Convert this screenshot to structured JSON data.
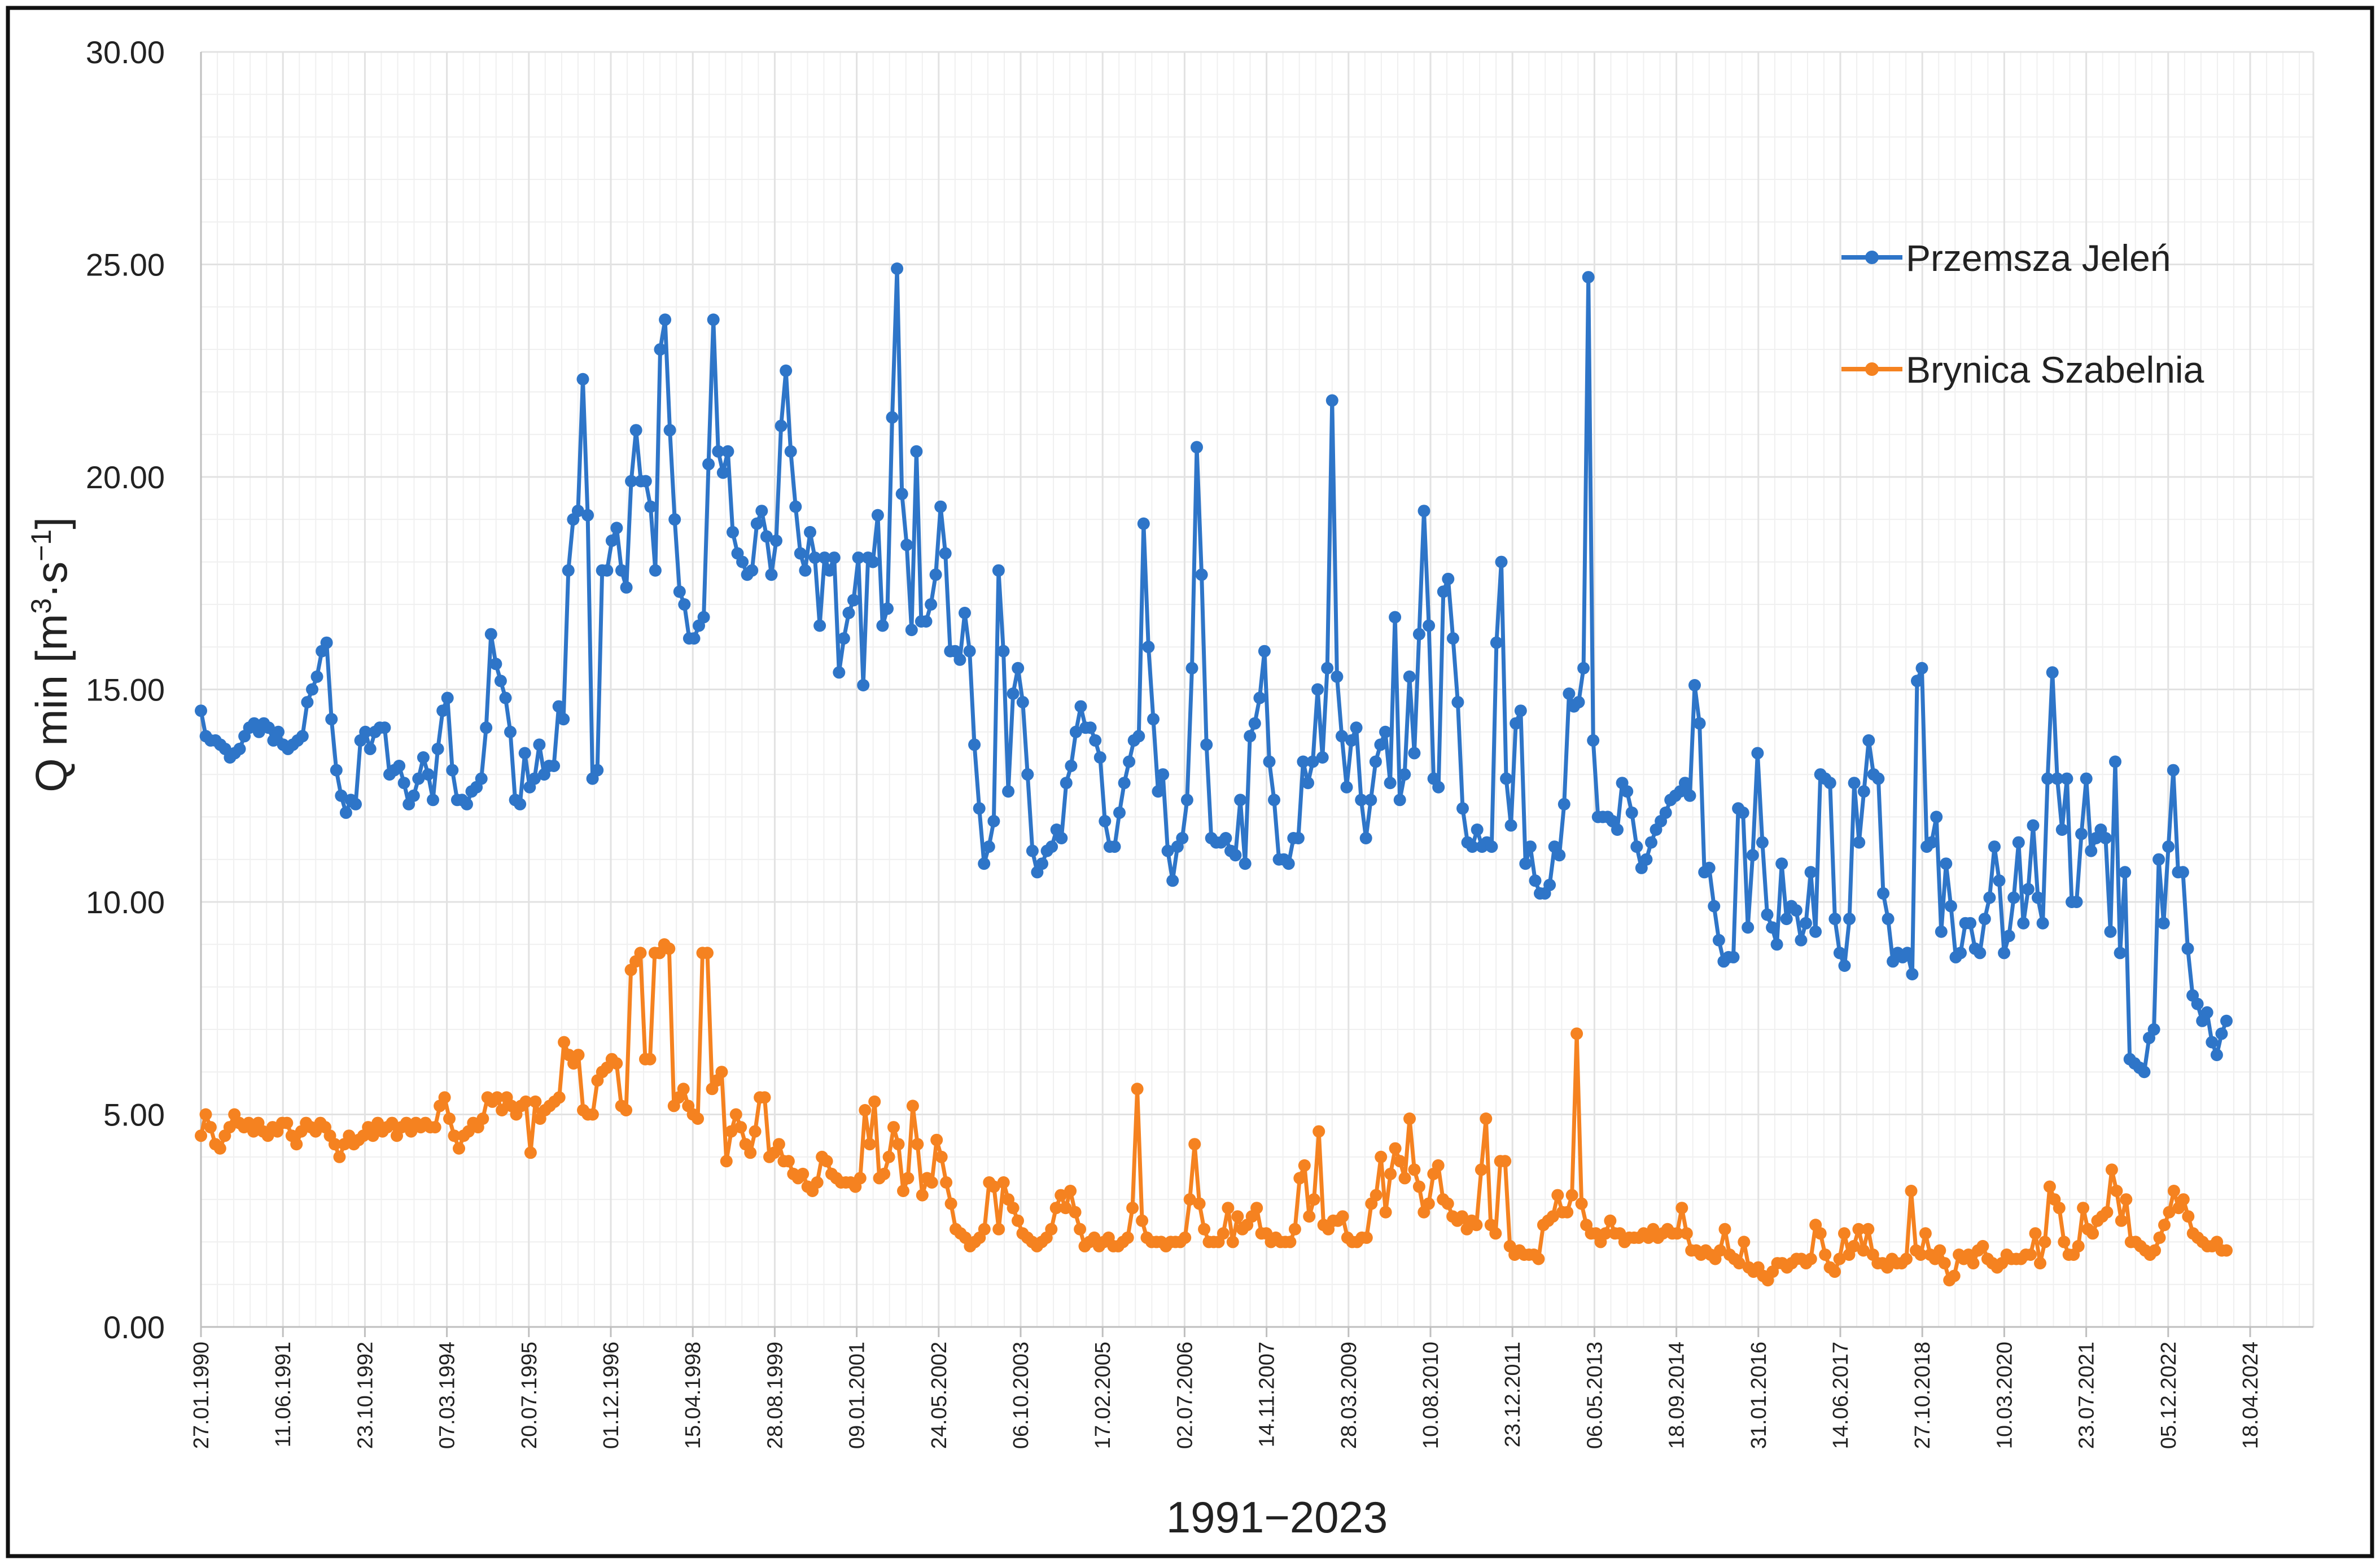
{
  "chart_data": {
    "type": "line",
    "title": "",
    "xlabel": "1991−2023",
    "ylabel_main": "Q min [m",
    "ylabel_sup1": "3",
    "ylabel_mid": "·s",
    "ylabel_sup2": "−1",
    "ylabel_end": "]",
    "ylim": [
      0,
      30
    ],
    "y_ticks": [
      "0.00",
      "5.00",
      "10.00",
      "15.00",
      "20.00",
      "25.00",
      "30.00"
    ],
    "x_tick_labels": [
      "27.01.1990",
      "11.06.1991",
      "23.10.1992",
      "07.03.1994",
      "20.07.1995",
      "01.12.1996",
      "15.04.1998",
      "28.08.1999",
      "09.01.2001",
      "24.05.2002",
      "06.10.2003",
      "17.02.2005",
      "02.07.2006",
      "14.11.2007",
      "28.03.2009",
      "10.08.2010",
      "23.12.2011",
      "06.05.2013",
      "18.09.2014",
      "31.01.2016",
      "14.06.2017",
      "27.10.2018",
      "10.03.2020",
      "23.07.2021",
      "05.12.2022",
      "18.04.2024"
    ],
    "x_range_years": [
      1990.07,
      2024.29
    ],
    "grid": true,
    "legend_position": "top-right",
    "colors": {
      "Przemsza Jeleń": "#2e75c8",
      "Brynica Szabelnia": "#f58220",
      "grid": "#e2e2e2",
      "frame": "#111111"
    },
    "series": [
      {
        "name": "Przemsza Jeleń",
        "values": [
          14.5,
          13.9,
          13.8,
          13.8,
          13.7,
          13.6,
          13.4,
          13.5,
          13.6,
          13.9,
          14.1,
          14.2,
          14.0,
          14.2,
          14.1,
          13.8,
          14.0,
          13.7,
          13.6,
          13.7,
          13.8,
          13.9,
          14.7,
          15.0,
          15.3,
          15.9,
          16.1,
          14.3,
          13.1,
          12.5,
          12.1,
          12.4,
          12.3,
          13.8,
          14.0,
          13.6,
          14.0,
          14.1,
          14.1,
          13.0,
          13.1,
          13.2,
          12.8,
          12.3,
          12.5,
          12.9,
          13.4,
          13.0,
          12.4,
          13.6,
          14.5,
          14.8,
          13.1,
          12.4,
          12.4,
          12.3,
          12.6,
          12.7,
          12.9,
          14.1,
          16.3,
          15.6,
          15.2,
          14.8,
          14.0,
          12.4,
          12.3,
          13.5,
          12.7,
          12.9,
          13.7,
          13.0,
          13.2,
          13.2,
          14.6,
          14.3,
          17.8,
          19.0,
          19.2,
          22.3,
          19.1,
          12.9,
          13.1,
          17.8,
          17.8,
          18.5,
          18.8,
          17.8,
          17.4,
          19.9,
          21.1,
          19.9,
          19.9,
          19.3,
          17.8,
          23.0,
          23.7,
          21.1,
          19.0,
          17.3,
          17.0,
          16.2,
          16.2,
          16.5,
          16.7,
          20.3,
          23.7,
          20.6,
          20.1,
          20.6,
          18.7,
          18.2,
          18.0,
          17.7,
          17.8,
          18.9,
          19.2,
          18.6,
          17.7,
          18.5,
          21.2,
          22.5,
          20.6,
          19.3,
          18.2,
          17.8,
          18.7,
          18.1,
          16.5,
          18.1,
          17.8,
          18.1,
          15.4,
          16.2,
          16.8,
          17.1,
          18.1,
          15.1,
          18.1,
          18.0,
          19.1,
          16.5,
          16.9,
          21.4,
          24.9,
          19.6,
          18.4,
          16.4,
          20.6,
          16.6,
          16.6,
          17.0,
          17.7,
          19.3,
          18.2,
          15.9,
          15.9,
          15.7,
          16.8,
          15.9,
          13.7,
          12.2,
          10.9,
          11.3,
          11.9,
          17.8,
          15.9,
          12.6,
          14.9,
          15.5,
          14.7,
          13.0,
          11.2,
          10.7,
          10.9,
          11.2,
          11.3,
          11.7,
          11.5,
          12.8,
          13.2,
          14.0,
          14.6,
          14.1,
          14.1,
          13.8,
          13.4,
          11.9,
          11.3,
          11.3,
          12.1,
          12.8,
          13.3,
          13.8,
          13.9,
          18.9,
          16.0,
          14.3,
          12.6,
          13.0,
          11.2,
          10.5,
          11.3,
          11.5,
          12.4,
          15.5,
          20.7,
          17.7,
          13.7,
          11.5,
          11.4,
          11.4,
          11.5,
          11.2,
          11.1,
          12.4,
          10.9,
          13.9,
          14.2,
          14.8,
          15.9,
          13.3,
          12.4,
          11.0,
          11.0,
          10.9,
          11.5,
          11.5,
          13.3,
          12.8,
          13.3,
          15.0,
          13.4,
          15.5,
          21.8,
          15.3,
          13.9,
          12.7,
          13.8,
          14.1,
          12.4,
          11.5,
          12.4,
          13.3,
          13.7,
          14.0,
          12.8,
          16.7,
          12.4,
          13.0,
          15.3,
          13.5,
          16.3,
          19.2,
          16.5,
          12.9,
          12.7,
          17.3,
          17.6,
          16.2,
          14.7,
          12.2,
          11.4,
          11.3,
          11.7,
          11.3,
          11.4,
          11.3,
          16.1,
          18.0,
          12.9,
          11.8,
          14.2,
          14.5,
          10.9,
          11.3,
          10.5,
          10.2,
          10.2,
          10.4,
          11.3,
          11.1,
          12.3,
          14.9,
          14.6,
          14.7,
          15.5,
          24.7,
          13.8,
          12.0,
          12.0,
          12.0,
          11.9,
          11.7,
          12.8,
          12.6,
          12.1,
          11.3,
          10.8,
          11.0,
          11.4,
          11.7,
          11.9,
          12.1,
          12.4,
          12.5,
          12.6,
          12.8,
          12.5,
          15.1,
          14.2,
          10.7,
          10.8,
          9.9,
          9.1,
          8.6,
          8.7,
          8.7,
          12.2,
          12.1,
          9.4,
          11.1,
          13.5,
          11.4,
          9.7,
          9.4,
          9.0,
          10.9,
          9.6,
          9.9,
          9.8,
          9.1,
          9.5,
          10.7,
          9.3,
          13.0,
          12.9,
          12.8,
          9.6,
          8.8,
          8.5,
          9.6,
          12.8,
          11.4,
          12.6,
          13.8,
          13.0,
          12.9,
          10.2,
          9.6,
          8.6,
          8.8,
          8.7,
          8.8,
          8.3,
          15.2,
          15.5,
          11.3,
          11.4,
          12.0,
          9.3,
          10.9,
          9.9,
          8.7,
          8.8,
          9.5,
          9.5,
          8.9,
          8.8,
          9.6,
          10.1,
          11.3,
          10.5,
          8.8,
          9.2,
          10.1,
          11.4,
          9.5,
          10.3,
          11.8,
          10.1,
          9.5,
          12.9,
          15.4,
          12.9,
          11.7,
          12.9,
          10.0,
          10.0,
          11.6,
          12.9,
          11.2,
          11.5,
          11.7,
          11.5,
          9.3,
          13.3,
          8.8,
          10.7,
          6.3,
          6.2,
          6.1,
          6.0,
          6.8,
          7.0,
          11.0,
          9.5,
          11.3,
          13.1,
          10.7,
          10.7,
          8.9,
          7.8,
          7.6,
          7.2,
          7.4,
          6.7,
          6.4,
          6.9,
          7.2
        ]
      },
      {
        "name": "Brynica Szabelnia",
        "values": [
          4.5,
          5.0,
          4.7,
          4.3,
          4.2,
          4.5,
          4.7,
          5.0,
          4.8,
          4.7,
          4.8,
          4.6,
          4.8,
          4.6,
          4.5,
          4.7,
          4.6,
          4.8,
          4.8,
          4.5,
          4.3,
          4.6,
          4.8,
          4.7,
          4.6,
          4.8,
          4.7,
          4.5,
          4.3,
          4.0,
          4.3,
          4.5,
          4.3,
          4.4,
          4.5,
          4.7,
          4.5,
          4.8,
          4.6,
          4.7,
          4.8,
          4.5,
          4.7,
          4.8,
          4.6,
          4.8,
          4.7,
          4.8,
          4.7,
          4.7,
          5.2,
          5.4,
          4.9,
          4.5,
          4.2,
          4.5,
          4.6,
          4.8,
          4.7,
          4.9,
          5.4,
          5.3,
          5.4,
          5.1,
          5.4,
          5.2,
          5.0,
          5.2,
          5.3,
          4.1,
          5.3,
          4.9,
          5.1,
          5.2,
          5.3,
          5.4,
          6.7,
          6.4,
          6.2,
          6.4,
          5.1,
          5.0,
          5.0,
          5.8,
          6.0,
          6.1,
          6.3,
          6.2,
          5.2,
          5.1,
          8.4,
          8.6,
          8.8,
          6.3,
          6.3,
          8.8,
          8.8,
          9.0,
          8.9,
          5.2,
          5.4,
          5.6,
          5.2,
          5.0,
          4.9,
          8.8,
          8.8,
          5.6,
          5.8,
          6.0,
          3.9,
          4.6,
          5.0,
          4.7,
          4.3,
          4.1,
          4.6,
          5.4,
          5.4,
          4.0,
          4.1,
          4.3,
          3.9,
          3.9,
          3.6,
          3.5,
          3.6,
          3.3,
          3.2,
          3.4,
          4.0,
          3.9,
          3.6,
          3.5,
          3.4,
          3.4,
          3.4,
          3.3,
          3.5,
          5.1,
          4.3,
          5.3,
          3.5,
          3.6,
          4.0,
          4.7,
          4.3,
          3.2,
          3.5,
          5.2,
          4.3,
          3.1,
          3.5,
          3.4,
          4.4,
          4.0,
          3.4,
          2.9,
          2.3,
          2.2,
          2.1,
          1.9,
          2.0,
          2.1,
          2.3,
          3.4,
          3.3,
          2.3,
          3.4,
          3.0,
          2.8,
          2.5,
          2.2,
          2.1,
          2.0,
          1.9,
          2.0,
          2.1,
          2.3,
          2.8,
          3.1,
          2.8,
          3.2,
          2.7,
          2.3,
          1.9,
          2.0,
          2.1,
          1.9,
          2.0,
          2.1,
          1.9,
          1.9,
          2.0,
          2.1,
          2.8,
          5.6,
          2.5,
          2.1,
          2.0,
          2.0,
          2.0,
          1.9,
          2.0,
          2.0,
          2.0,
          2.1,
          3.0,
          4.3,
          2.9,
          2.3,
          2.0,
          2.0,
          2.0,
          2.2,
          2.8,
          2.0,
          2.6,
          2.3,
          2.4,
          2.6,
          2.8,
          2.2,
          2.2,
          2.0,
          2.1,
          2.0,
          2.0,
          2.0,
          2.3,
          3.5,
          3.8,
          2.6,
          3.0,
          4.6,
          2.4,
          2.3,
          2.5,
          2.5,
          2.6,
          2.1,
          2.0,
          2.0,
          2.1,
          2.1,
          2.9,
          3.1,
          4.0,
          2.7,
          3.6,
          4.2,
          3.9,
          3.5,
          4.9,
          3.7,
          3.3,
          2.7,
          2.9,
          3.6,
          3.8,
          3.0,
          2.9,
          2.6,
          2.5,
          2.6,
          2.3,
          2.5,
          2.4,
          3.7,
          4.9,
          2.4,
          2.2,
          3.9,
          3.9,
          1.9,
          1.7,
          1.8,
          1.7,
          1.7,
          1.7,
          1.6,
          2.4,
          2.5,
          2.6,
          3.1,
          2.7,
          2.7,
          3.1,
          6.9,
          2.9,
          2.4,
          2.2,
          2.2,
          2.0,
          2.2,
          2.5,
          2.2,
          2.2,
          2.0,
          2.1,
          2.1,
          2.1,
          2.2,
          2.1,
          2.3,
          2.1,
          2.2,
          2.3,
          2.2,
          2.2,
          2.8,
          2.2,
          1.8,
          1.8,
          1.7,
          1.8,
          1.7,
          1.6,
          1.8,
          2.3,
          1.7,
          1.6,
          1.5,
          2.0,
          1.4,
          1.3,
          1.4,
          1.2,
          1.1,
          1.3,
          1.5,
          1.5,
          1.4,
          1.5,
          1.6,
          1.6,
          1.5,
          1.6,
          2.4,
          2.2,
          1.7,
          1.4,
          1.3,
          1.6,
          2.2,
          1.7,
          1.9,
          2.3,
          1.8,
          2.3,
          1.7,
          1.5,
          1.5,
          1.4,
          1.6,
          1.5,
          1.5,
          1.6,
          3.2,
          1.8,
          1.7,
          2.2,
          1.7,
          1.6,
          1.8,
          1.5,
          1.1,
          1.2,
          1.7,
          1.6,
          1.7,
          1.5,
          1.8,
          1.9,
          1.6,
          1.5,
          1.4,
          1.5,
          1.7,
          1.6,
          1.6,
          1.6,
          1.7,
          1.7,
          2.2,
          1.5,
          2.0,
          3.3,
          3.0,
          2.8,
          2.0,
          1.7,
          1.7,
          1.9,
          2.8,
          2.3,
          2.2,
          2.5,
          2.6,
          2.7,
          3.7,
          3.2,
          2.5,
          3.0,
          2.0,
          2.0,
          1.9,
          1.8,
          1.7,
          1.8,
          2.1,
          2.4,
          2.7,
          3.2,
          2.8,
          3.0,
          2.6,
          2.2,
          2.1,
          2.0,
          1.9,
          1.9,
          2.0,
          1.8,
          1.8
        ]
      }
    ]
  }
}
